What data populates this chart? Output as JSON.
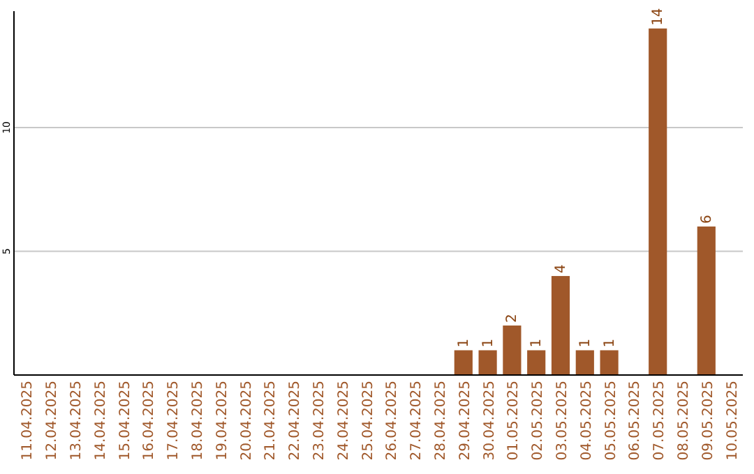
{
  "chart_data": {
    "type": "bar",
    "categories": [
      "11.04.2025",
      "12.04.2025",
      "13.04.2025",
      "14.04.2025",
      "15.04.2025",
      "16.04.2025",
      "17.04.2025",
      "18.04.2025",
      "19.04.2025",
      "20.04.2025",
      "21.04.2025",
      "22.04.2025",
      "23.04.2025",
      "24.04.2025",
      "25.04.2025",
      "26.04.2025",
      "27.04.2025",
      "28.04.2025",
      "29.04.2025",
      "30.04.2025",
      "01.05.2025",
      "02.05.2025",
      "03.05.2025",
      "04.05.2025",
      "05.05.2025",
      "06.05.2025",
      "07.05.2025",
      "08.05.2025",
      "09.05.2025",
      "10.05.2025"
    ],
    "values": [
      null,
      null,
      null,
      null,
      null,
      null,
      null,
      null,
      null,
      null,
      null,
      null,
      null,
      null,
      null,
      null,
      null,
      null,
      1,
      1,
      2,
      1,
      4,
      1,
      1,
      null,
      14,
      null,
      6,
      null
    ],
    "color": "#a0582a",
    "ylim": [
      0,
      14.7
    ],
    "yticks": [
      5,
      10
    ],
    "grid": "y",
    "data_labels": true
  }
}
